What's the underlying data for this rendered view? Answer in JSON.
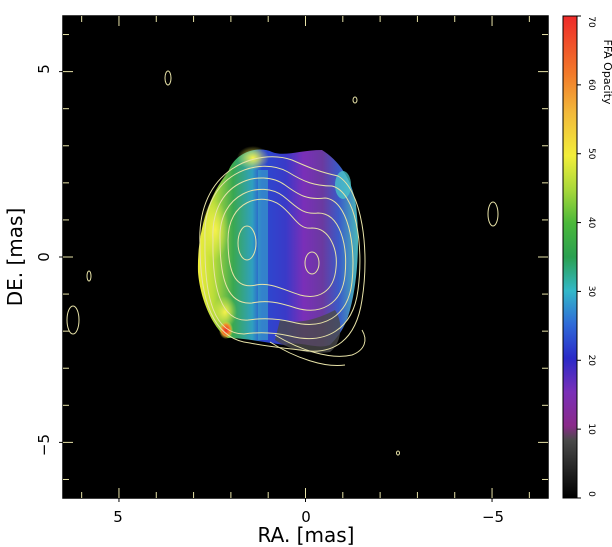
{
  "figure": {
    "xlabel": "RA. [mas]",
    "ylabel": "DE. [mas]",
    "x_ticks": [
      "5",
      "0",
      "−5"
    ],
    "y_ticks": [
      "5",
      "0",
      "−5"
    ],
    "x_range": [
      6.5,
      -6.5
    ],
    "y_range": [
      -6.5,
      6.5
    ]
  },
  "colorbar": {
    "label": "FFA Opacity",
    "ticks": [
      "0",
      "10",
      "20",
      "30",
      "40",
      "50",
      "60",
      "70"
    ],
    "range": [
      0,
      70
    ]
  },
  "colors": {
    "background": "#000000",
    "contour": "#e8e3a8"
  }
}
